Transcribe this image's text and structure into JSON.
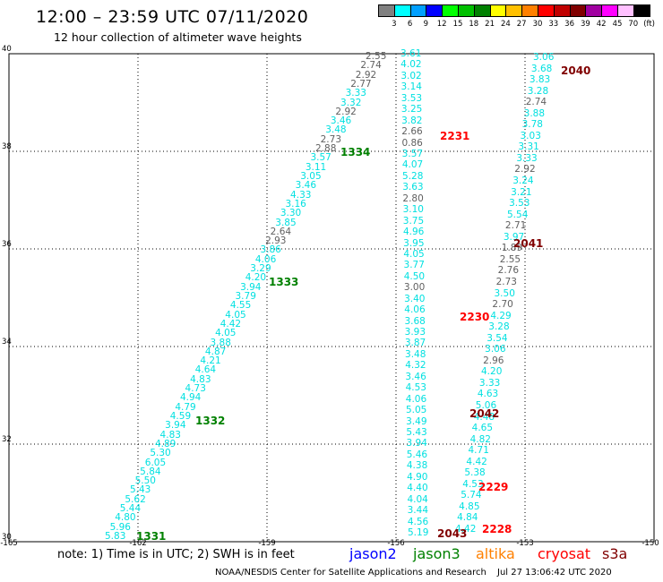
{
  "header": {
    "title": "12:00 – 23:59 UTC 07/11/2020",
    "subtitle": "12 hour collection of altimeter wave heights"
  },
  "legend": {
    "labels": [
      "3",
      "6",
      "9",
      "12",
      "15",
      "18",
      "21",
      "24",
      "27",
      "30",
      "33",
      "36",
      "39",
      "42",
      "45",
      "70",
      "(ft)"
    ],
    "colors": [
      "#808080",
      "#00ffff",
      "#00a0ff",
      "#0000ff",
      "#00ff00",
      "#00c000",
      "#008000",
      "#ffff00",
      "#ffc000",
      "#ff8000",
      "#ff0000",
      "#c00000",
      "#800000",
      "#a000a0",
      "#ff00ff",
      "#ffc0ff",
      "#000000"
    ]
  },
  "axes": {
    "y_labels": [
      "40",
      "38",
      "36",
      "34",
      "32",
      "30"
    ],
    "x_labels": [
      "-165",
      "-162",
      "-159",
      "-156",
      "-153",
      "-150"
    ]
  },
  "colors": {
    "gray": "#606060",
    "cyan": "#00e0e0",
    "green": "#008000",
    "red": "#ff0000",
    "darkred": "#800000"
  },
  "tracks": [
    {
      "name": "track-1331-1334",
      "values": [
        {
          "v": "2.55",
          "c": "gray"
        },
        {
          "v": "2.74",
          "c": "gray"
        },
        {
          "v": "2.92",
          "c": "gray"
        },
        {
          "v": "2.77",
          "c": "gray"
        },
        {
          "v": "3.33",
          "c": "cyan"
        },
        {
          "v": "3.32",
          "c": "cyan"
        },
        {
          "v": "2.92",
          "c": "gray"
        },
        {
          "v": "3.46",
          "c": "cyan"
        },
        {
          "v": "3.48",
          "c": "cyan"
        },
        {
          "v": "2.73",
          "c": "gray"
        },
        {
          "v": "2.88",
          "c": "gray"
        },
        {
          "v": "3.57",
          "c": "cyan"
        },
        {
          "v": "3.11",
          "c": "cyan"
        },
        {
          "v": "3.05",
          "c": "cyan"
        },
        {
          "v": "3.46",
          "c": "cyan"
        },
        {
          "v": "4.33",
          "c": "cyan"
        },
        {
          "v": "3.16",
          "c": "cyan"
        },
        {
          "v": "3.30",
          "c": "cyan"
        },
        {
          "v": "3.85",
          "c": "cyan"
        },
        {
          "v": "2.64",
          "c": "gray"
        },
        {
          "v": "2.93",
          "c": "gray"
        },
        {
          "v": "3.86",
          "c": "cyan"
        },
        {
          "v": "4.06",
          "c": "cyan"
        },
        {
          "v": "3.29",
          "c": "cyan"
        },
        {
          "v": "4.20",
          "c": "cyan"
        },
        {
          "v": "3.94",
          "c": "cyan"
        },
        {
          "v": "3.79",
          "c": "cyan"
        },
        {
          "v": "4.55",
          "c": "cyan"
        },
        {
          "v": "4.05",
          "c": "cyan"
        },
        {
          "v": "4.42",
          "c": "cyan"
        },
        {
          "v": "4.05",
          "c": "cyan"
        },
        {
          "v": "3.88",
          "c": "cyan"
        },
        {
          "v": "4.87",
          "c": "cyan"
        },
        {
          "v": "4.21",
          "c": "cyan"
        },
        {
          "v": "4.64",
          "c": "cyan"
        },
        {
          "v": "4.83",
          "c": "cyan"
        },
        {
          "v": "4.73",
          "c": "cyan"
        },
        {
          "v": "4.94",
          "c": "cyan"
        },
        {
          "v": "4.79",
          "c": "cyan"
        },
        {
          "v": "4.59",
          "c": "cyan"
        },
        {
          "v": "3.94",
          "c": "cyan"
        },
        {
          "v": "4.83",
          "c": "cyan"
        },
        {
          "v": "4.89",
          "c": "cyan"
        },
        {
          "v": "5.30",
          "c": "cyan"
        },
        {
          "v": "6.05",
          "c": "cyan"
        },
        {
          "v": "5.84",
          "c": "cyan"
        },
        {
          "v": "5.50",
          "c": "cyan"
        },
        {
          "v": "5.43",
          "c": "cyan"
        },
        {
          "v": "5.62",
          "c": "cyan"
        },
        {
          "v": "5.44",
          "c": "cyan"
        },
        {
          "v": "4.80",
          "c": "cyan"
        },
        {
          "v": "5.96",
          "c": "cyan"
        },
        {
          "v": "5.83",
          "c": "cyan"
        }
      ]
    },
    {
      "name": "track-2231-2043",
      "values": [
        {
          "v": "3.61",
          "c": "cyan"
        },
        {
          "v": "4.02",
          "c": "cyan"
        },
        {
          "v": "3.02",
          "c": "cyan"
        },
        {
          "v": "3.14",
          "c": "cyan"
        },
        {
          "v": "3.53",
          "c": "cyan"
        },
        {
          "v": "3.25",
          "c": "cyan"
        },
        {
          "v": "3.82",
          "c": "cyan"
        },
        {
          "v": "2.66",
          "c": "gray"
        },
        {
          "v": "0.86",
          "c": "gray"
        },
        {
          "v": "3.57",
          "c": "cyan"
        },
        {
          "v": "4.07",
          "c": "cyan"
        },
        {
          "v": "5.28",
          "c": "cyan"
        },
        {
          "v": "3.63",
          "c": "cyan"
        },
        {
          "v": "2.80",
          "c": "gray"
        },
        {
          "v": "3.10",
          "c": "cyan"
        },
        {
          "v": "3.75",
          "c": "cyan"
        },
        {
          "v": "4.96",
          "c": "cyan"
        },
        {
          "v": "3.95",
          "c": "cyan"
        },
        {
          "v": "4.05",
          "c": "cyan"
        },
        {
          "v": "3.77",
          "c": "cyan"
        },
        {
          "v": "4.50",
          "c": "cyan"
        },
        {
          "v": "3.00",
          "c": "gray"
        },
        {
          "v": "3.40",
          "c": "cyan"
        },
        {
          "v": "4.06",
          "c": "cyan"
        },
        {
          "v": "3.68",
          "c": "cyan"
        },
        {
          "v": "3.93",
          "c": "cyan"
        },
        {
          "v": "3.87",
          "c": "cyan"
        },
        {
          "v": "3.48",
          "c": "cyan"
        },
        {
          "v": "4.32",
          "c": "cyan"
        },
        {
          "v": "3.46",
          "c": "cyan"
        },
        {
          "v": "4.53",
          "c": "cyan"
        },
        {
          "v": "4.06",
          "c": "cyan"
        },
        {
          "v": "5.05",
          "c": "cyan"
        },
        {
          "v": "3.49",
          "c": "cyan"
        },
        {
          "v": "5.43",
          "c": "cyan"
        },
        {
          "v": "3.94",
          "c": "cyan"
        },
        {
          "v": "5.46",
          "c": "cyan"
        },
        {
          "v": "4.38",
          "c": "cyan"
        },
        {
          "v": "4.90",
          "c": "cyan"
        },
        {
          "v": "4.40",
          "c": "cyan"
        },
        {
          "v": "4.04",
          "c": "cyan"
        },
        {
          "v": "3.44",
          "c": "cyan"
        },
        {
          "v": "4.56",
          "c": "cyan"
        },
        {
          "v": "5.19",
          "c": "cyan"
        }
      ]
    },
    {
      "name": "track-2040-2228",
      "values": [
        {
          "v": "3.06",
          "c": "cyan"
        },
        {
          "v": "3.68",
          "c": "cyan"
        },
        {
          "v": "3.83",
          "c": "cyan"
        },
        {
          "v": "3.28",
          "c": "cyan"
        },
        {
          "v": "2.74",
          "c": "gray"
        },
        {
          "v": "3.88",
          "c": "cyan"
        },
        {
          "v": "3.78",
          "c": "cyan"
        },
        {
          "v": "3.03",
          "c": "cyan"
        },
        {
          "v": "3.31",
          "c": "cyan"
        },
        {
          "v": "3.33",
          "c": "cyan"
        },
        {
          "v": "2.92",
          "c": "gray"
        },
        {
          "v": "3.24",
          "c": "cyan"
        },
        {
          "v": "3.21",
          "c": "cyan"
        },
        {
          "v": "3.53",
          "c": "cyan"
        },
        {
          "v": "5.54",
          "c": "cyan"
        },
        {
          "v": "2.71",
          "c": "gray"
        },
        {
          "v": "3.97",
          "c": "cyan"
        },
        {
          "v": "1.89",
          "c": "gray"
        },
        {
          "v": "2.55",
          "c": "gray"
        },
        {
          "v": "2.76",
          "c": "gray"
        },
        {
          "v": "2.73",
          "c": "gray"
        },
        {
          "v": "3.50",
          "c": "cyan"
        },
        {
          "v": "2.70",
          "c": "gray"
        },
        {
          "v": "4.29",
          "c": "cyan"
        },
        {
          "v": "3.28",
          "c": "cyan"
        },
        {
          "v": "3.54",
          "c": "cyan"
        },
        {
          "v": "3.06",
          "c": "cyan"
        },
        {
          "v": "2.96",
          "c": "gray"
        },
        {
          "v": "4.20",
          "c": "cyan"
        },
        {
          "v": "3.33",
          "c": "cyan"
        },
        {
          "v": "4.63",
          "c": "cyan"
        },
        {
          "v": "5.06",
          "c": "cyan"
        },
        {
          "v": "4.48",
          "c": "cyan"
        },
        {
          "v": "4.65",
          "c": "cyan"
        },
        {
          "v": "4.82",
          "c": "cyan"
        },
        {
          "v": "4.71",
          "c": "cyan"
        },
        {
          "v": "4.42",
          "c": "cyan"
        },
        {
          "v": "5.38",
          "c": "cyan"
        },
        {
          "v": "4.53",
          "c": "cyan"
        },
        {
          "v": "5.74",
          "c": "cyan"
        },
        {
          "v": "4.85",
          "c": "cyan"
        },
        {
          "v": "4.84",
          "c": "cyan"
        },
        {
          "v": "4.42",
          "c": "cyan"
        }
      ]
    }
  ],
  "pass_labels": [
    {
      "id": "1334",
      "c": "green"
    },
    {
      "id": "1333",
      "c": "green"
    },
    {
      "id": "1332",
      "c": "green"
    },
    {
      "id": "1331",
      "c": "green"
    },
    {
      "id": "2231",
      "c": "red"
    },
    {
      "id": "2230",
      "c": "red"
    },
    {
      "id": "2229",
      "c": "red"
    },
    {
      "id": "2228",
      "c": "red"
    },
    {
      "id": "2040",
      "c": "darkred"
    },
    {
      "id": "2041",
      "c": "darkred"
    },
    {
      "id": "2042",
      "c": "darkred"
    },
    {
      "id": "2043",
      "c": "darkred"
    }
  ],
  "footer": {
    "note": "note: 1) Time is in UTC; 2) SWH is in feet",
    "satellites": [
      {
        "name": "jason2",
        "color": "#0000ff"
      },
      {
        "name": "jason3",
        "color": "#008000"
      },
      {
        "name": "altika",
        "color": "#ff8000"
      },
      {
        "name": "cryosat",
        "color": "#ff0000"
      },
      {
        "name": "s3a",
        "color": "#800000"
      }
    ],
    "credit": "NOAA/NESDIS Center for Satellite Applications and Research",
    "timestamp": "Jul 27 13:06:42 UTC 2020"
  }
}
